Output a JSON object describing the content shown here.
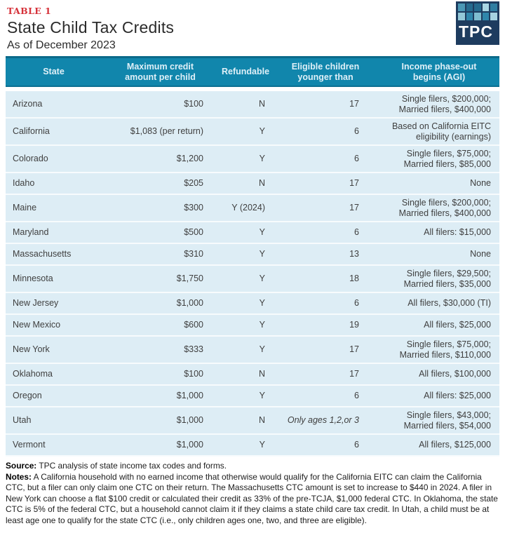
{
  "header": {
    "table_label": "TABLE 1",
    "title": "State Child Tax Credits",
    "subtitle": "As of December 2023",
    "logo": {
      "text": "TPC",
      "navy": "#1e3c5f",
      "squares": [
        "#4a97b5",
        "#256a8e",
        "#256a8e",
        "#a9d6e3",
        "#2f7ea2",
        "#93c8d8",
        "#2f86ab",
        "#7fbdd0",
        "#2f86ab",
        "#a5d2e0"
      ]
    }
  },
  "colors": {
    "header_bg": "#1186ac",
    "header_border": "#0c7092",
    "row_bg": "#ddedf5",
    "accent_red": "#d6323a"
  },
  "table": {
    "columns": [
      "State",
      "Maximum credit\namount per child",
      "Refundable",
      "Eligible children\nyounger than",
      "Income phase-out\nbegins (AGI)"
    ],
    "rows": [
      {
        "state": "Arizona",
        "amount": "$100",
        "refundable": "N",
        "age": "17",
        "phaseout": "Single filers, $200,000;\nMarried filers, $400,000"
      },
      {
        "state": "California",
        "amount": "$1,083 (per return)",
        "refundable": "Y",
        "age": "6",
        "phaseout": "Based on California EITC\neligibility (earnings)"
      },
      {
        "state": "Colorado",
        "amount": "$1,200",
        "refundable": "Y",
        "age": "6",
        "phaseout": "Single filers, $75,000;\nMarried filers, $85,000"
      },
      {
        "state": "Idaho",
        "amount": "$205",
        "refundable": "N",
        "age": "17",
        "phaseout": "None"
      },
      {
        "state": "Maine",
        "amount": "$300",
        "refundable": "Y (2024)",
        "age": "17",
        "phaseout": "Single filers, $200,000;\nMarried filers, $400,000"
      },
      {
        "state": "Maryland",
        "amount": "$500",
        "refundable": "Y",
        "age": "6",
        "phaseout": "All filers: $15,000"
      },
      {
        "state": "Massachusetts",
        "amount": "$310",
        "refundable": "Y",
        "age": "13",
        "phaseout": "None"
      },
      {
        "state": "Minnesota",
        "amount": "$1,750",
        "refundable": "Y",
        "age": "18",
        "phaseout": "Single filers, $29,500;\nMarried filers, $35,000"
      },
      {
        "state": "New Jersey",
        "amount": "$1,000",
        "refundable": "Y",
        "age": "6",
        "phaseout": "All filers, $30,000 (TI)"
      },
      {
        "state": "New Mexico",
        "amount": "$600",
        "refundable": "Y",
        "age": "19",
        "phaseout": "All filers, $25,000"
      },
      {
        "state": "New York",
        "amount": "$333",
        "refundable": "Y",
        "age": "17",
        "phaseout": "Single filers, $75,000;\nMarried filers, $110,000"
      },
      {
        "state": "Oklahoma",
        "amount": "$100",
        "refundable": "N",
        "age": "17",
        "phaseout": "All filers, $100,000"
      },
      {
        "state": "Oregon",
        "amount": "$1,000",
        "refundable": "Y",
        "age": "6",
        "phaseout": "All filers: $25,000"
      },
      {
        "state": "Utah",
        "amount": "$1,000",
        "refundable": "N",
        "age": "Only ages 1,2,or 3",
        "age_italic": true,
        "phaseout": "Single filers, $43,000;\nMarried filers, $54,000"
      },
      {
        "state": "Vermont",
        "amount": "$1,000",
        "refundable": "Y",
        "age": "6",
        "phaseout": "All filers, $125,000"
      }
    ]
  },
  "footer": {
    "source_label": "Source:",
    "source_text": " TPC analysis of state income tax codes and forms.",
    "notes_label": "Notes:",
    "notes_text": " A California household with no earned income that otherwise would qualify for the California EITC can claim the California CTC, but a filer can only claim one CTC on their return. The Massachusetts CTC amount is set to increase to $440 in 2024. A filer in New York can choose a flat $100 credit or calculated their credit as 33% of the pre-TCJA, $1,000 federal CTC. In Oklahoma, the state CTC is 5% of the federal CTC, but a household cannot claim it if they claims a state child care tax credit. In Utah, a child must be at least age one to qualify for the state CTC (i.e., only children ages one, two, and three are eligible)."
  },
  "chart_data": {
    "type": "table",
    "title": "State Child Tax Credits",
    "subtitle": "As of December 2023",
    "columns": [
      "State",
      "Maximum credit amount per child",
      "Refundable",
      "Eligible children younger than",
      "Income phase-out begins (AGI)"
    ],
    "rows": [
      [
        "Arizona",
        "$100",
        "N",
        "17",
        "Single filers, $200,000; Married filers, $400,000"
      ],
      [
        "California",
        "$1,083 (per return)",
        "Y",
        "6",
        "Based on California EITC eligibility (earnings)"
      ],
      [
        "Colorado",
        "$1,200",
        "Y",
        "6",
        "Single filers, $75,000; Married filers, $85,000"
      ],
      [
        "Idaho",
        "$205",
        "N",
        "17",
        "None"
      ],
      [
        "Maine",
        "$300",
        "Y (2024)",
        "17",
        "Single filers, $200,000; Married filers, $400,000"
      ],
      [
        "Maryland",
        "$500",
        "Y",
        "6",
        "All filers: $15,000"
      ],
      [
        "Massachusetts",
        "$310",
        "Y",
        "13",
        "None"
      ],
      [
        "Minnesota",
        "$1,750",
        "Y",
        "18",
        "Single filers, $29,500; Married filers, $35,000"
      ],
      [
        "New Jersey",
        "$1,000",
        "Y",
        "6",
        "All filers, $30,000 (TI)"
      ],
      [
        "New Mexico",
        "$600",
        "Y",
        "19",
        "All filers, $25,000"
      ],
      [
        "New York",
        "$333",
        "Y",
        "17",
        "Single filers, $75,000; Married filers, $110,000"
      ],
      [
        "Oklahoma",
        "$100",
        "N",
        "17",
        "All filers, $100,000"
      ],
      [
        "Oregon",
        "$1,000",
        "Y",
        "6",
        "All filers: $25,000"
      ],
      [
        "Utah",
        "$1,000",
        "N",
        "Only ages 1,2,or 3",
        "Single filers, $43,000; Married filers, $54,000"
      ],
      [
        "Vermont",
        "$1,000",
        "Y",
        "6",
        "All filers, $125,000"
      ]
    ]
  }
}
